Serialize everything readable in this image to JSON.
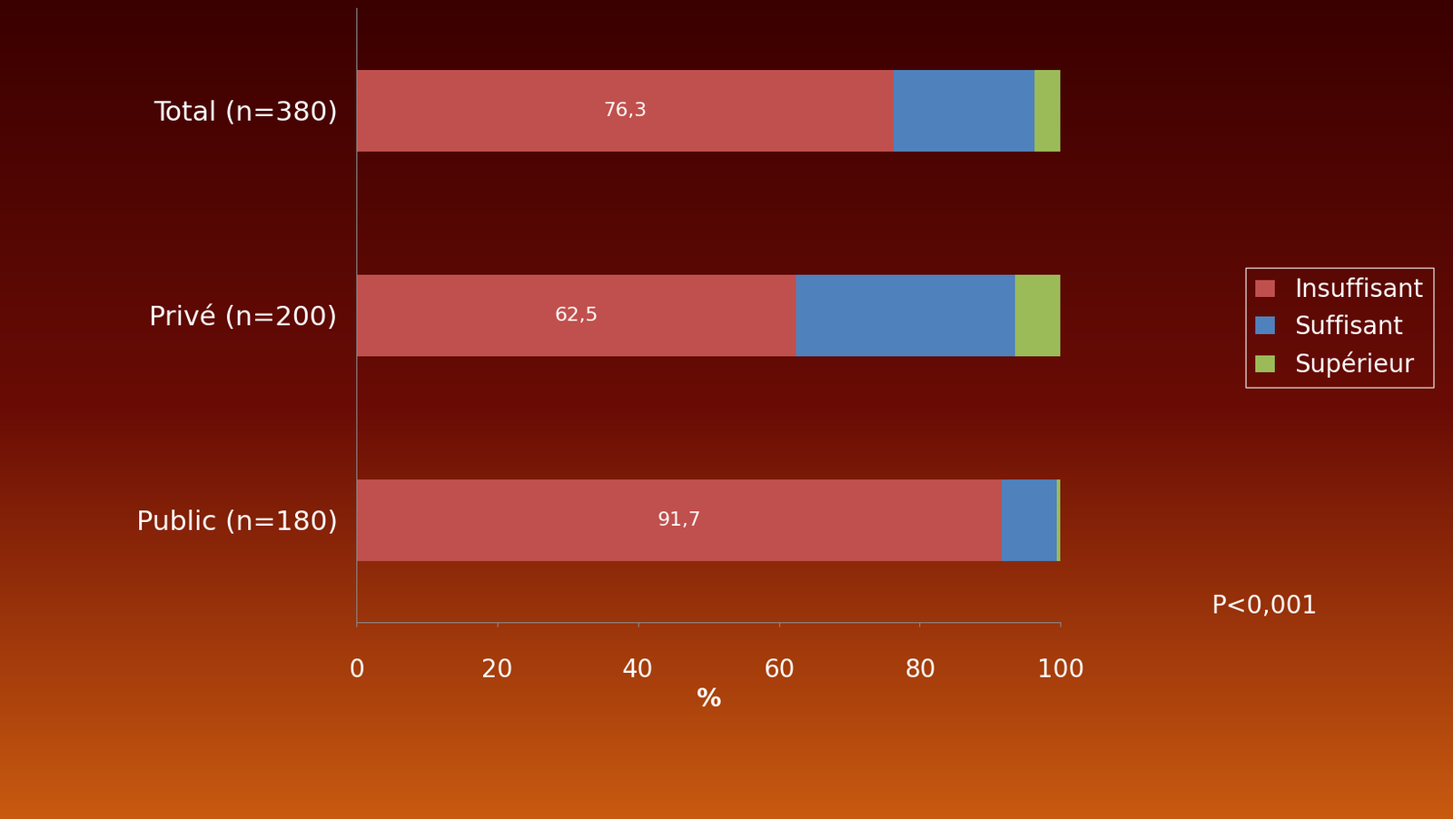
{
  "chart_data": {
    "type": "bar",
    "orientation": "horizontal",
    "stacked": true,
    "categories": [
      "Total (n=380)",
      "Privé (n=200)",
      "Public (n=180)"
    ],
    "series": [
      {
        "name": "Insuffisant",
        "color": "#c0504d",
        "values": [
          76.3,
          62.5,
          91.7
        ],
        "value_labels": [
          "76,3",
          "62,5",
          "91,7"
        ]
      },
      {
        "name": "Suffisant",
        "color": "#4f81bd",
        "values": [
          20.0,
          31.0,
          7.8
        ]
      },
      {
        "name": "Supérieur",
        "color": "#9bbb59",
        "values": [
          3.7,
          6.5,
          0.5
        ]
      }
    ],
    "xlabel": "%",
    "xlim": [
      0,
      100
    ],
    "xticks": [
      0,
      20,
      40,
      60,
      80,
      100
    ],
    "annotations": [
      "P<0,001"
    ],
    "legend": "right",
    "grid": false,
    "data_labels": true
  }
}
